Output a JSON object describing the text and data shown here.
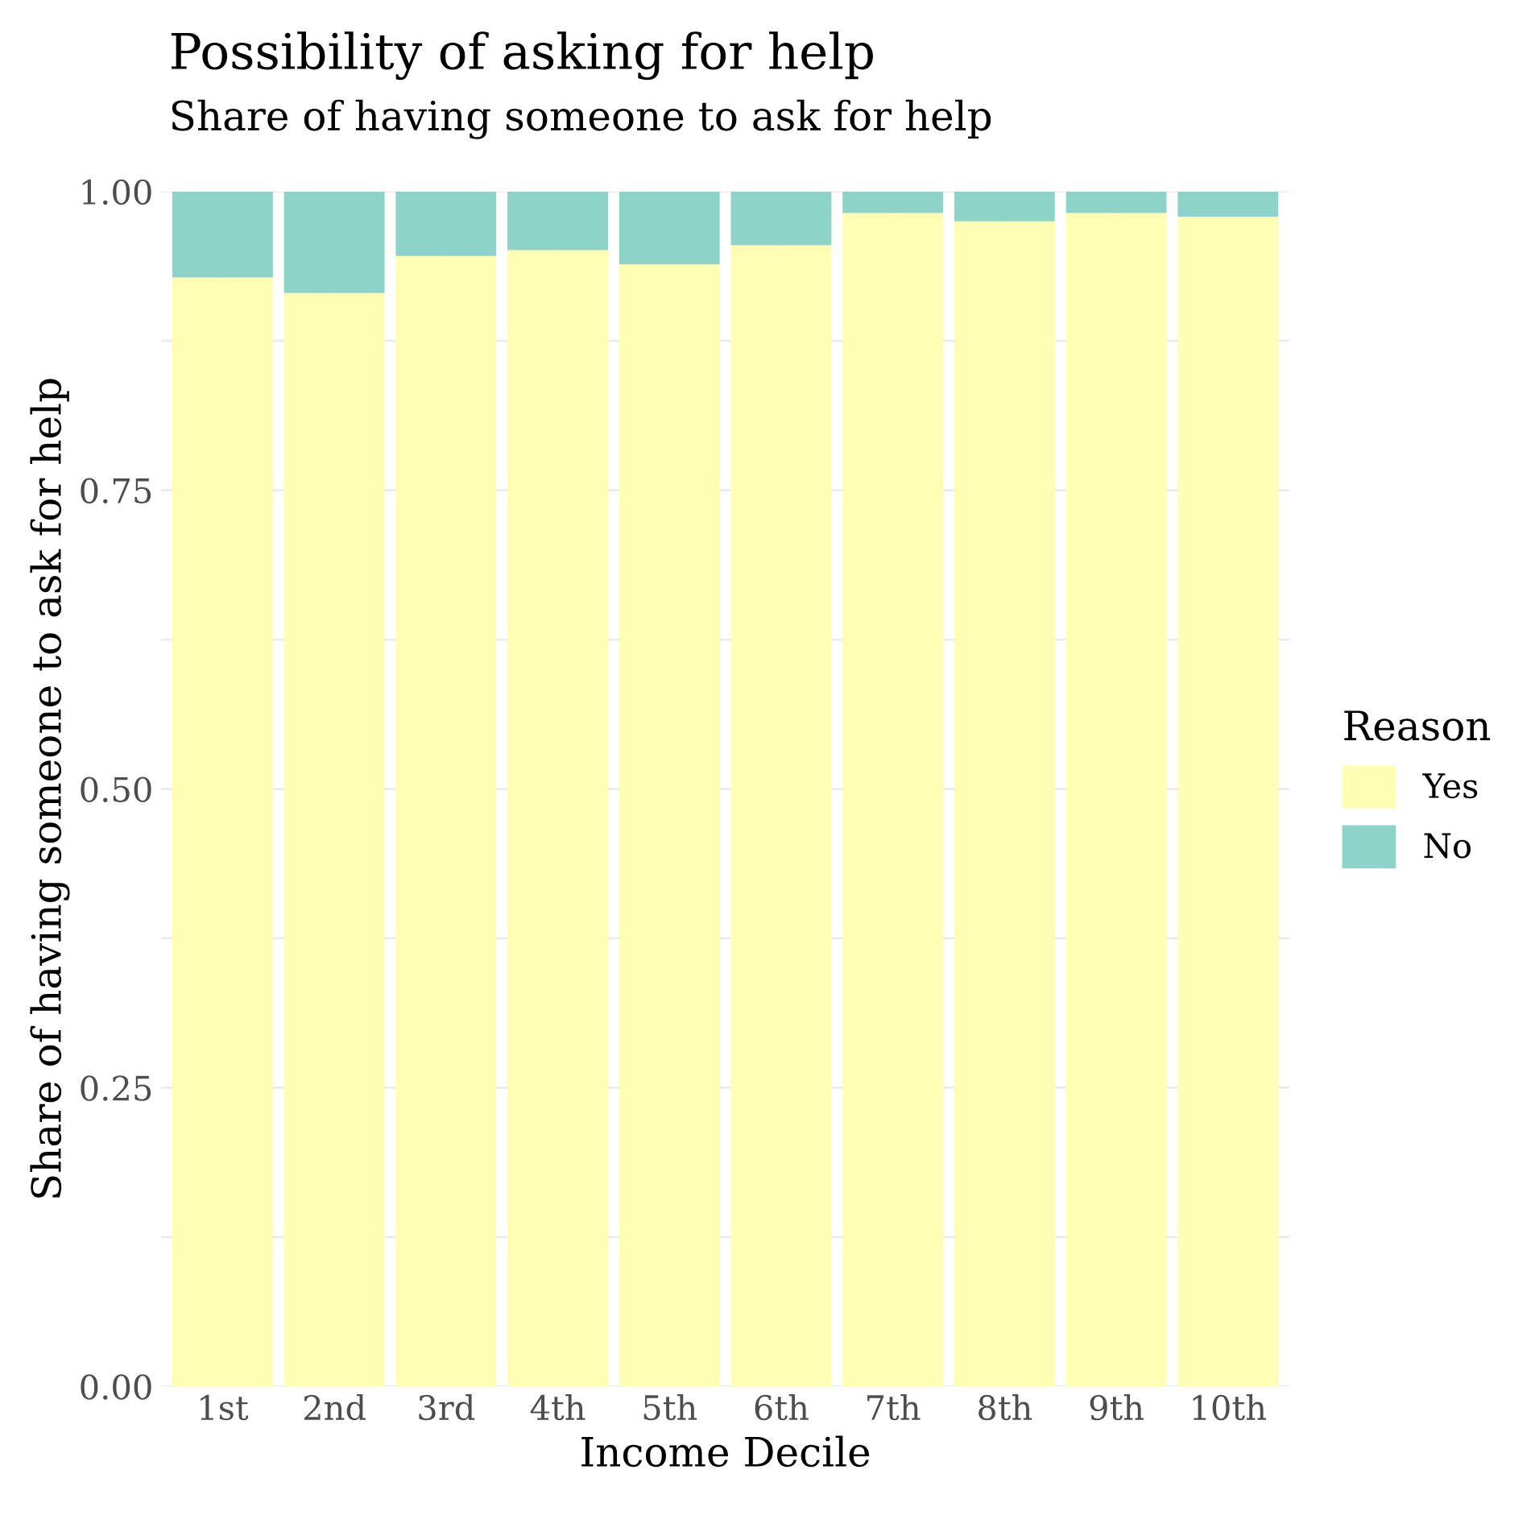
{
  "chart_data": {
    "type": "bar",
    "title": "Possibility of asking for help",
    "subtitle": "Share of having someone to ask for help",
    "xlabel": "Income Decile",
    "ylabel": "Share of having someone to ask for help",
    "legend_title": "Reason",
    "categories": [
      "1st",
      "2nd",
      "3rd",
      "4th",
      "5th",
      "6th",
      "7th",
      "8th",
      "9th",
      "10th"
    ],
    "stacked": true,
    "series": [
      {
        "name": "Yes",
        "color": "#ffffb3",
        "values": [
          0.928,
          0.915,
          0.946,
          0.951,
          0.939,
          0.955,
          0.982,
          0.975,
          0.982,
          0.979
        ]
      },
      {
        "name": "No",
        "color": "#8dd3c7",
        "values": [
          0.072,
          0.085,
          0.054,
          0.049,
          0.061,
          0.045,
          0.018,
          0.025,
          0.018,
          0.021
        ]
      }
    ],
    "ylim": [
      0,
      1.0
    ],
    "yticks": [
      {
        "value": 0,
        "label": "0.00"
      },
      {
        "value": 0.125,
        "label": null
      },
      {
        "value": 0.25,
        "label": "0.25"
      },
      {
        "value": 0.375,
        "label": null
      },
      {
        "value": 0.5,
        "label": "0.50"
      },
      {
        "value": 0.625,
        "label": null
      },
      {
        "value": 0.75,
        "label": "0.75"
      },
      {
        "value": 0.875,
        "label": null
      },
      {
        "value": 1.0,
        "label": "1.00"
      }
    ],
    "grid": true,
    "legend": "right"
  }
}
